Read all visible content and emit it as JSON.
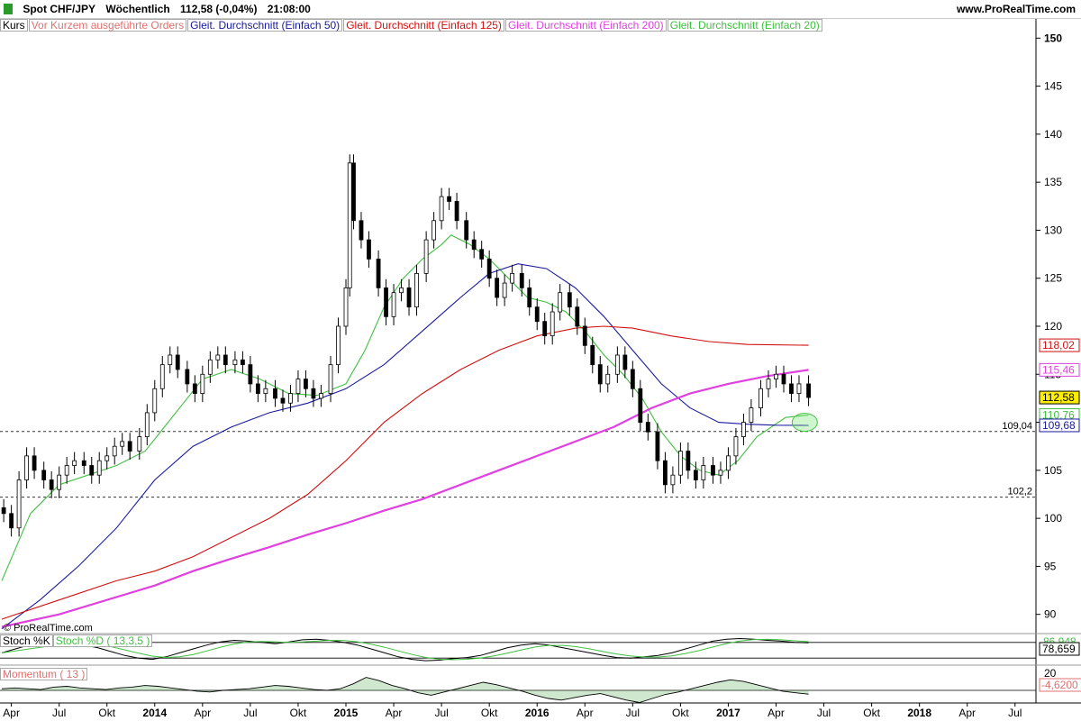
{
  "header": {
    "instrument": "Spot CHF/JPY",
    "period": "Wöchentlich",
    "quote": "112,58 (-0,04%)",
    "time": "21:08:00",
    "brand": "www.ProRealTime.com",
    "watermark": "© ProRealTime.com"
  },
  "legend": [
    {
      "label": "Kurs",
      "color": "#000000"
    },
    {
      "label": "Vor Kurzem ausgeführte Orders",
      "color": "#e07070"
    },
    {
      "label": "Gleit. Durchschnitt (Einfach 50)",
      "color": "#1a1aa0"
    },
    {
      "label": "Gleit. Durchschnitt (Einfach 125)",
      "color": "#d01010"
    },
    {
      "label": "Gleit. Durchschnitt (Einfach 200)",
      "color": "#e040e0"
    },
    {
      "label": "Gleit. Durchschnitt (Einfach 20)",
      "color": "#40c040"
    }
  ],
  "chart_data": {
    "type": "line",
    "title": "Spot CHF/JPY Wöchentlich",
    "ylim": [
      88,
      152
    ],
    "yticks": [
      90,
      95,
      100,
      105,
      110,
      115,
      120,
      125,
      130,
      135,
      140,
      145,
      150
    ],
    "xlim": [
      2013.2,
      2018.6
    ],
    "xticks": [
      {
        "x": 2013.25,
        "label": "Apr",
        "bold": false
      },
      {
        "x": 2013.5,
        "label": "Jul",
        "bold": false
      },
      {
        "x": 2013.75,
        "label": "Okt",
        "bold": false
      },
      {
        "x": 2014.0,
        "label": "2014",
        "bold": true
      },
      {
        "x": 2014.25,
        "label": "Apr",
        "bold": false
      },
      {
        "x": 2014.5,
        "label": "Jul",
        "bold": false
      },
      {
        "x": 2014.75,
        "label": "Okt",
        "bold": false
      },
      {
        "x": 2015.0,
        "label": "2015",
        "bold": true
      },
      {
        "x": 2015.25,
        "label": "Apr",
        "bold": false
      },
      {
        "x": 2015.5,
        "label": "Jul",
        "bold": false
      },
      {
        "x": 2015.75,
        "label": "Okt",
        "bold": false
      },
      {
        "x": 2016.0,
        "label": "2016",
        "bold": true
      },
      {
        "x": 2016.25,
        "label": "Apr",
        "bold": false
      },
      {
        "x": 2016.5,
        "label": "Jul",
        "bold": false
      },
      {
        "x": 2016.75,
        "label": "Okt",
        "bold": false
      },
      {
        "x": 2017.0,
        "label": "2017",
        "bold": true
      },
      {
        "x": 2017.25,
        "label": "Apr",
        "bold": false
      },
      {
        "x": 2017.5,
        "label": "Jul",
        "bold": false
      },
      {
        "x": 2017.75,
        "label": "Okt",
        "bold": false
      },
      {
        "x": 2018.0,
        "label": "2018",
        "bold": true
      },
      {
        "x": 2018.25,
        "label": "Apr",
        "bold": false
      },
      {
        "x": 2018.5,
        "label": "Jul",
        "bold": false
      }
    ],
    "price_series": [
      [
        2013.21,
        100.5
      ],
      [
        2013.25,
        99.0
      ],
      [
        2013.29,
        104.0
      ],
      [
        2013.33,
        106.5
      ],
      [
        2013.37,
        105.0
      ],
      [
        2013.42,
        104.0
      ],
      [
        2013.46,
        103.0
      ],
      [
        2013.5,
        104.5
      ],
      [
        2013.54,
        105.5
      ],
      [
        2013.58,
        106.0
      ],
      [
        2013.63,
        105.5
      ],
      [
        2013.67,
        104.5
      ],
      [
        2013.71,
        106.0
      ],
      [
        2013.75,
        106.5
      ],
      [
        2013.79,
        107.5
      ],
      [
        2013.83,
        108.0
      ],
      [
        2013.87,
        107.0
      ],
      [
        2013.92,
        108.5
      ],
      [
        2013.96,
        111.0
      ],
      [
        2014.0,
        113.5
      ],
      [
        2014.04,
        116.0
      ],
      [
        2014.08,
        117.0
      ],
      [
        2014.12,
        115.5
      ],
      [
        2014.17,
        114.0
      ],
      [
        2014.21,
        113.0
      ],
      [
        2014.25,
        115.0
      ],
      [
        2014.29,
        116.5
      ],
      [
        2014.33,
        117.0
      ],
      [
        2014.37,
        116.0
      ],
      [
        2014.42,
        116.5
      ],
      [
        2014.46,
        116.0
      ],
      [
        2014.5,
        114.0
      ],
      [
        2014.54,
        113.0
      ],
      [
        2014.58,
        113.5
      ],
      [
        2014.63,
        112.5
      ],
      [
        2014.67,
        112.0
      ],
      [
        2014.71,
        113.0
      ],
      [
        2014.75,
        114.5
      ],
      [
        2014.79,
        113.5
      ],
      [
        2014.83,
        112.5
      ],
      [
        2014.87,
        113.0
      ],
      [
        2014.92,
        116.0
      ],
      [
        2014.96,
        120.0
      ],
      [
        2015.0,
        124.0
      ],
      [
        2015.02,
        137.0
      ],
      [
        2015.04,
        131.0
      ],
      [
        2015.08,
        129.0
      ],
      [
        2015.12,
        127.0
      ],
      [
        2015.17,
        124.0
      ],
      [
        2015.21,
        121.0
      ],
      [
        2015.25,
        123.5
      ],
      [
        2015.29,
        124.0
      ],
      [
        2015.33,
        122.0
      ],
      [
        2015.37,
        125.5
      ],
      [
        2015.42,
        129.0
      ],
      [
        2015.46,
        131.0
      ],
      [
        2015.5,
        133.5
      ],
      [
        2015.54,
        133.0
      ],
      [
        2015.58,
        131.0
      ],
      [
        2015.63,
        129.0
      ],
      [
        2015.67,
        128.0
      ],
      [
        2015.71,
        127.0
      ],
      [
        2015.75,
        125.0
      ],
      [
        2015.79,
        123.0
      ],
      [
        2015.83,
        124.5
      ],
      [
        2015.87,
        125.5
      ],
      [
        2015.92,
        124.0
      ],
      [
        2015.96,
        122.0
      ],
      [
        2016.0,
        120.5
      ],
      [
        2016.04,
        119.0
      ],
      [
        2016.08,
        121.5
      ],
      [
        2016.12,
        123.5
      ],
      [
        2016.17,
        122.0
      ],
      [
        2016.21,
        120.0
      ],
      [
        2016.25,
        118.0
      ],
      [
        2016.29,
        116.0
      ],
      [
        2016.33,
        114.0
      ],
      [
        2016.37,
        115.0
      ],
      [
        2016.42,
        117.0
      ],
      [
        2016.46,
        115.5
      ],
      [
        2016.5,
        113.5
      ],
      [
        2016.54,
        110.0
      ],
      [
        2016.58,
        109.0
      ],
      [
        2016.63,
        106.0
      ],
      [
        2016.67,
        103.5
      ],
      [
        2016.71,
        104.5
      ],
      [
        2016.75,
        107.0
      ],
      [
        2016.79,
        105.0
      ],
      [
        2016.83,
        104.0
      ],
      [
        2016.87,
        105.5
      ],
      [
        2016.92,
        104.5
      ],
      [
        2016.96,
        105.0
      ],
      [
        2017.0,
        106.5
      ],
      [
        2017.04,
        108.5
      ],
      [
        2017.08,
        110.0
      ],
      [
        2017.12,
        111.5
      ],
      [
        2017.17,
        113.5
      ],
      [
        2017.21,
        114.5
      ],
      [
        2017.25,
        115.0
      ],
      [
        2017.29,
        114.0
      ],
      [
        2017.33,
        113.0
      ],
      [
        2017.37,
        114.0
      ],
      [
        2017.42,
        112.58
      ]
    ],
    "series": [
      {
        "name": "Gleit. Durchschnitt (Einfach 20)",
        "color": "#40c040",
        "points": [
          [
            2013.2,
            93.5
          ],
          [
            2013.35,
            100.5
          ],
          [
            2013.5,
            103.5
          ],
          [
            2013.65,
            104.5
          ],
          [
            2013.8,
            105.5
          ],
          [
            2013.95,
            107.0
          ],
          [
            2014.05,
            109.5
          ],
          [
            2014.15,
            112.0
          ],
          [
            2014.25,
            114.5
          ],
          [
            2014.4,
            115.5
          ],
          [
            2014.55,
            114.5
          ],
          [
            2014.7,
            113.0
          ],
          [
            2014.85,
            112.8
          ],
          [
            2015.0,
            114.0
          ],
          [
            2015.1,
            117.5
          ],
          [
            2015.2,
            122.0
          ],
          [
            2015.3,
            125.0
          ],
          [
            2015.4,
            127.0
          ],
          [
            2015.5,
            128.5
          ],
          [
            2015.55,
            129.5
          ],
          [
            2015.65,
            128.5
          ],
          [
            2015.75,
            127.0
          ],
          [
            2015.85,
            125.0
          ],
          [
            2015.95,
            123.0
          ],
          [
            2016.05,
            122.5
          ],
          [
            2016.15,
            121.5
          ],
          [
            2016.25,
            119.5
          ],
          [
            2016.35,
            117.0
          ],
          [
            2016.45,
            115.0
          ],
          [
            2016.55,
            112.5
          ],
          [
            2016.65,
            109.0
          ],
          [
            2016.75,
            106.5
          ],
          [
            2016.85,
            105.0
          ],
          [
            2016.95,
            104.5
          ],
          [
            2017.05,
            106.0
          ],
          [
            2017.15,
            108.5
          ],
          [
            2017.3,
            110.5
          ],
          [
            2017.42,
            110.76
          ]
        ]
      },
      {
        "name": "Gleit. Durchschnitt (Einfach 50)",
        "color": "#1a1aa0",
        "points": [
          [
            2013.2,
            88.5
          ],
          [
            2013.4,
            91.5
          ],
          [
            2013.6,
            95.0
          ],
          [
            2013.8,
            99.0
          ],
          [
            2014.0,
            104.0
          ],
          [
            2014.2,
            107.5
          ],
          [
            2014.4,
            109.5
          ],
          [
            2014.6,
            111.0
          ],
          [
            2014.8,
            112.0
          ],
          [
            2015.0,
            113.5
          ],
          [
            2015.2,
            116.0
          ],
          [
            2015.4,
            119.5
          ],
          [
            2015.6,
            123.0
          ],
          [
            2015.75,
            125.5
          ],
          [
            2015.9,
            126.5
          ],
          [
            2016.05,
            126.0
          ],
          [
            2016.2,
            124.0
          ],
          [
            2016.35,
            121.0
          ],
          [
            2016.5,
            117.5
          ],
          [
            2016.65,
            114.0
          ],
          [
            2016.8,
            111.5
          ],
          [
            2016.95,
            110.0
          ],
          [
            2017.1,
            109.8
          ],
          [
            2017.25,
            109.7
          ],
          [
            2017.42,
            109.68
          ]
        ]
      },
      {
        "name": "Gleit. Durchschnitt (Einfach 125)",
        "color": "#d01010",
        "points": [
          [
            2013.2,
            89.5
          ],
          [
            2013.5,
            91.5
          ],
          [
            2013.8,
            93.5
          ],
          [
            2014.0,
            94.5
          ],
          [
            2014.2,
            96.0
          ],
          [
            2014.4,
            98.0
          ],
          [
            2014.6,
            100.0
          ],
          [
            2014.8,
            102.5
          ],
          [
            2015.0,
            106.0
          ],
          [
            2015.2,
            110.0
          ],
          [
            2015.4,
            113.0
          ],
          [
            2015.6,
            115.5
          ],
          [
            2015.8,
            117.5
          ],
          [
            2016.0,
            119.0
          ],
          [
            2016.2,
            119.8
          ],
          [
            2016.35,
            120.0
          ],
          [
            2016.5,
            119.8
          ],
          [
            2016.7,
            119.0
          ],
          [
            2016.9,
            118.4
          ],
          [
            2017.1,
            118.1
          ],
          [
            2017.42,
            118.02
          ]
        ]
      },
      {
        "name": "Gleit. Durchschnitt (Einfach 200)",
        "color": "#e040e0",
        "points": [
          [
            2013.2,
            88.7
          ],
          [
            2013.5,
            90.0
          ],
          [
            2013.8,
            91.8
          ],
          [
            2014.0,
            93.0
          ],
          [
            2014.2,
            94.5
          ],
          [
            2014.4,
            95.8
          ],
          [
            2014.6,
            97.0
          ],
          [
            2014.8,
            98.3
          ],
          [
            2015.0,
            99.5
          ],
          [
            2015.2,
            100.8
          ],
          [
            2015.4,
            102.0
          ],
          [
            2015.6,
            103.5
          ],
          [
            2015.8,
            105.0
          ],
          [
            2016.0,
            106.5
          ],
          [
            2016.2,
            108.0
          ],
          [
            2016.4,
            109.5
          ],
          [
            2016.6,
            111.5
          ],
          [
            2016.8,
            113.0
          ],
          [
            2017.0,
            114.0
          ],
          [
            2017.2,
            114.8
          ],
          [
            2017.42,
            115.46
          ]
        ]
      }
    ],
    "support_lines": [
      {
        "value": 109.04,
        "label": "109,04"
      },
      {
        "value": 102.2,
        "label": "102,2"
      }
    ],
    "right_badges": [
      {
        "value": 118.02,
        "label": "118,02",
        "color": "#d01010"
      },
      {
        "value": 115.46,
        "label": "115,46",
        "color": "#e040e0"
      },
      {
        "value": 112.58,
        "label": "112,58",
        "color": "#000000",
        "fill": "#ffee00"
      },
      {
        "value": 110.76,
        "label": "110,76",
        "color": "#40c040"
      },
      {
        "value": 109.68,
        "label": "109,68",
        "color": "#1a1aa0"
      }
    ],
    "marker": {
      "x": 2017.4,
      "y": 110.0
    }
  },
  "stoch_panel": {
    "labels": [
      {
        "label": "Stoch %K",
        "color": "#000000"
      },
      {
        "label": "Stoch %D ( 13,3,5 )",
        "color": "#40c040"
      }
    ],
    "badge_top": "86,948",
    "badge_value": "78,659",
    "level_hi": 80,
    "level_lo": 20,
    "k_values": [
      40,
      55,
      70,
      85,
      88,
      80,
      70,
      60,
      45,
      30,
      20,
      15,
      25,
      40,
      55,
      70,
      82,
      88,
      85,
      80,
      75,
      82,
      90,
      92,
      88,
      80,
      70,
      55,
      40,
      25,
      15,
      10,
      12,
      18,
      22,
      30,
      45,
      60,
      70,
      75,
      70,
      60,
      50,
      40,
      30,
      22,
      20,
      25,
      30,
      40,
      55,
      70,
      85,
      92,
      95,
      92,
      88,
      85,
      80,
      78.659
    ]
  },
  "momentum_panel": {
    "label": "Momentum ( 13 )",
    "badge_top": "20",
    "badge_value": "-4,6200",
    "values": [
      2,
      3,
      2,
      1,
      4,
      5,
      3,
      2,
      1,
      3,
      4,
      6,
      5,
      3,
      1,
      -1,
      -2,
      0,
      1,
      2,
      4,
      6,
      5,
      3,
      1,
      0,
      2,
      8,
      16,
      12,
      6,
      2,
      -3,
      -6,
      -2,
      2,
      6,
      10,
      7,
      3,
      -1,
      -6,
      -10,
      -12,
      -9,
      -6,
      -4,
      -8,
      -12,
      -15,
      -10,
      -5,
      -2,
      2,
      6,
      10,
      13,
      11,
      7,
      3,
      -1,
      -3,
      -4.62
    ]
  }
}
